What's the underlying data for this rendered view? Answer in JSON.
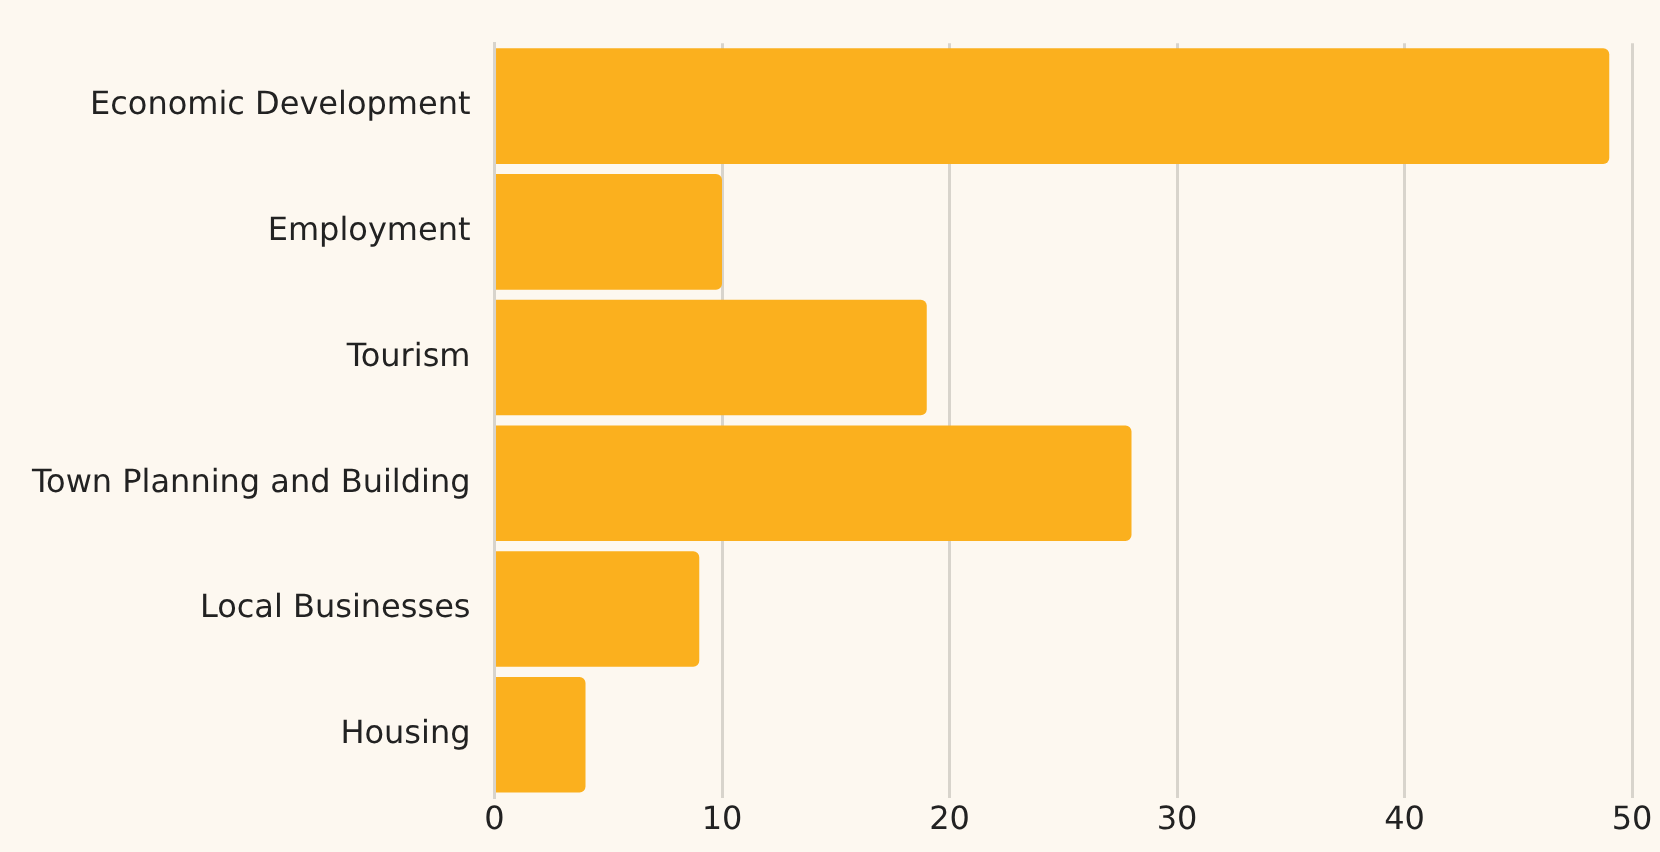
{
  "chart_data": {
    "type": "bar",
    "orientation": "horizontal",
    "categories": [
      "Economic Development",
      "Employment",
      "Tourism",
      "Town Planning and Building",
      "Local Businesses",
      "Housing"
    ],
    "values": [
      49,
      10,
      19,
      28,
      9,
      4
    ],
    "color": "#fbb01e",
    "xlim": [
      0,
      50
    ],
    "xticks": [
      0,
      10,
      20,
      30,
      40,
      50
    ],
    "grid": "x",
    "legend": false
  }
}
